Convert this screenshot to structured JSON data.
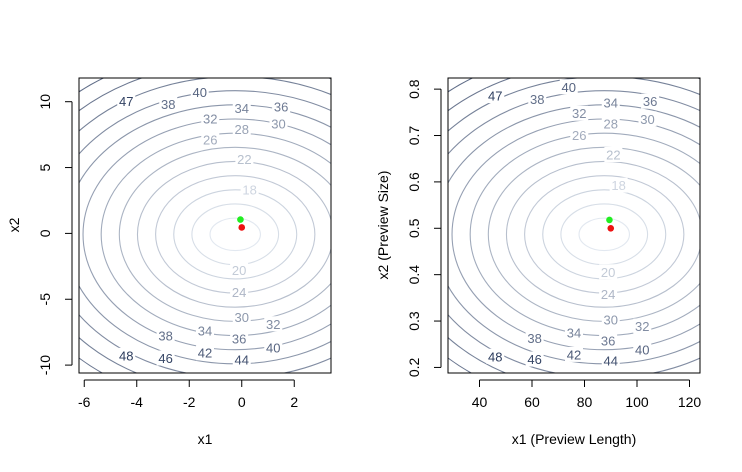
{
  "chart_data": [
    {
      "type": "contour",
      "title": "",
      "xlabel": "x1",
      "ylabel": "x2",
      "xlim": [
        -6.2,
        3.4
      ],
      "ylim": [
        -10.6,
        11.8
      ],
      "xticks": [
        -6,
        -4,
        -2,
        0,
        2
      ],
      "xtick_labels": [
        "-6",
        "-4",
        "-2",
        "0",
        "2"
      ],
      "yticks": [
        -10,
        -5,
        0,
        5,
        10
      ],
      "ytick_labels": [
        "-10",
        "-5",
        "0",
        "5",
        "10"
      ],
      "center": [
        -0.1,
        1.0
      ],
      "contour_levels": [
        16,
        18,
        20,
        22,
        24,
        26,
        28,
        30,
        32,
        34,
        36,
        38,
        40,
        42,
        44,
        46,
        48,
        50
      ],
      "contour_labels": [
        {
          "text": "47",
          "x": -4.4,
          "y": 10.0
        },
        {
          "text": "38",
          "x": -2.8,
          "y": 9.8
        },
        {
          "text": "40",
          "x": -1.6,
          "y": 10.7
        },
        {
          "text": "34",
          "x": 0.0,
          "y": 9.5
        },
        {
          "text": "36",
          "x": 1.5,
          "y": 9.6
        },
        {
          "text": "32",
          "x": -1.2,
          "y": 8.7
        },
        {
          "text": "28",
          "x": 0.0,
          "y": 7.9
        },
        {
          "text": "30",
          "x": 1.4,
          "y": 8.3
        },
        {
          "text": "26",
          "x": -1.2,
          "y": 7.1
        },
        {
          "text": "22",
          "x": 0.1,
          "y": 5.6
        },
        {
          "text": "18",
          "x": 0.3,
          "y": 3.3
        },
        {
          "text": "20",
          "x": -0.1,
          "y": -2.8
        },
        {
          "text": "24",
          "x": -0.1,
          "y": -4.5
        },
        {
          "text": "30",
          "x": 0.0,
          "y": -6.4
        },
        {
          "text": "32",
          "x": 1.2,
          "y": -6.9
        },
        {
          "text": "34",
          "x": -1.4,
          "y": -7.4
        },
        {
          "text": "36",
          "x": -0.1,
          "y": -8.0
        },
        {
          "text": "38",
          "x": -2.9,
          "y": -7.8
        },
        {
          "text": "40",
          "x": 1.2,
          "y": -8.7
        },
        {
          "text": "42",
          "x": -1.4,
          "y": -9.1
        },
        {
          "text": "44",
          "x": 0.0,
          "y": -9.6
        },
        {
          "text": "46",
          "x": -2.9,
          "y": -9.5
        },
        {
          "text": "48",
          "x": -4.4,
          "y": -9.3
        }
      ],
      "points": [
        {
          "x": -0.05,
          "y": 1.05,
          "color": "#22ee22"
        },
        {
          "x": 0.0,
          "y": 0.45,
          "color": "#ee1111"
        }
      ],
      "grid": false,
      "legend": "none"
    },
    {
      "type": "contour",
      "title": "",
      "xlabel": "x1 (Preview Length)",
      "ylabel": "x2 (Preview Size)",
      "xlim": [
        28,
        124
      ],
      "ylim": [
        0.188,
        0.824
      ],
      "xticks": [
        40,
        60,
        80,
        100,
        120
      ],
      "xtick_labels": [
        "40",
        "60",
        "80",
        "100",
        "120"
      ],
      "yticks": [
        0.2,
        0.3,
        0.4,
        0.5,
        0.6,
        0.7,
        0.8
      ],
      "ytick_labels": [
        "0.2",
        "0.3",
        "0.4",
        "0.5",
        "0.6",
        "0.7",
        "0.8"
      ],
      "center": [
        89,
        0.515
      ],
      "contour_levels": [
        16,
        18,
        20,
        22,
        24,
        26,
        28,
        30,
        32,
        34,
        36,
        38,
        40,
        42,
        44,
        46,
        48,
        50
      ],
      "contour_labels": [
        {
          "text": "47",
          "x": 46,
          "y": 0.785
        },
        {
          "text": "38",
          "x": 62,
          "y": 0.778
        },
        {
          "text": "40",
          "x": 74,
          "y": 0.804
        },
        {
          "text": "34",
          "x": 90,
          "y": 0.77
        },
        {
          "text": "36",
          "x": 105,
          "y": 0.773
        },
        {
          "text": "32",
          "x": 78,
          "y": 0.747
        },
        {
          "text": "28",
          "x": 90,
          "y": 0.725
        },
        {
          "text": "30",
          "x": 104,
          "y": 0.735
        },
        {
          "text": "26",
          "x": 78,
          "y": 0.7
        },
        {
          "text": "22",
          "x": 91,
          "y": 0.658
        },
        {
          "text": "18",
          "x": 93,
          "y": 0.592
        },
        {
          "text": "20",
          "x": 89,
          "y": 0.405
        },
        {
          "text": "24",
          "x": 89,
          "y": 0.357
        },
        {
          "text": "30",
          "x": 90,
          "y": 0.302
        },
        {
          "text": "32",
          "x": 102,
          "y": 0.288
        },
        {
          "text": "34",
          "x": 76,
          "y": 0.274
        },
        {
          "text": "36",
          "x": 89,
          "y": 0.257
        },
        {
          "text": "38",
          "x": 61,
          "y": 0.262
        },
        {
          "text": "40",
          "x": 102,
          "y": 0.238
        },
        {
          "text": "42",
          "x": 76,
          "y": 0.227
        },
        {
          "text": "44",
          "x": 90,
          "y": 0.214
        },
        {
          "text": "46",
          "x": 61,
          "y": 0.217
        },
        {
          "text": "48",
          "x": 46,
          "y": 0.223
        }
      ],
      "points": [
        {
          "x": 89.5,
          "y": 0.518,
          "color": "#22ee22"
        },
        {
          "x": 90,
          "y": 0.5,
          "color": "#ee1111"
        }
      ],
      "grid": false,
      "legend": "none"
    }
  ]
}
